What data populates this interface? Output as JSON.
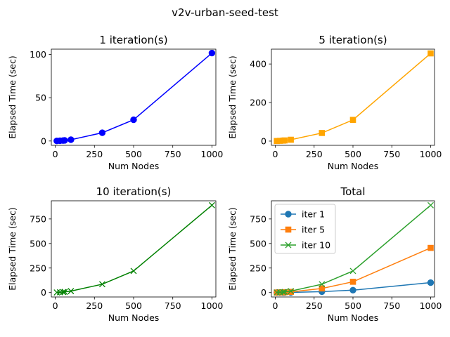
{
  "figure": {
    "title": "v2v-urban-seed-test"
  },
  "chart_data": [
    {
      "type": "line",
      "title": "1 iteration(s)",
      "xlabel": "Num Nodes",
      "ylabel": "Elapsed Time (sec)",
      "xlim": [
        -25,
        1025
      ],
      "ylim": [
        -5,
        106
      ],
      "xticks": [
        0,
        250,
        500,
        750,
        1000
      ],
      "yticks": [
        0,
        50,
        100
      ],
      "grid": false,
      "series": [
        {
          "color": "#0000ff",
          "marker": "circle",
          "x": [
            10,
            30,
            50,
            60,
            100,
            300,
            500,
            1000
          ],
          "y": [
            0.1,
            0.3,
            0.5,
            0.7,
            1.5,
            9.5,
            24.5,
            101.5
          ]
        }
      ]
    },
    {
      "type": "line",
      "title": "5 iteration(s)",
      "xlabel": "Num Nodes",
      "ylabel": "Elapsed Time (sec)",
      "xlim": [
        -25,
        1025
      ],
      "ylim": [
        -22,
        477
      ],
      "xticks": [
        0,
        250,
        500,
        750,
        1000
      ],
      "yticks": [
        0,
        200,
        400
      ],
      "grid": false,
      "series": [
        {
          "color": "#ffa500",
          "marker": "square",
          "x": [
            10,
            30,
            50,
            60,
            100,
            300,
            500,
            1000
          ],
          "y": [
            0.5,
            1.5,
            2.5,
            3.5,
            7,
            42,
            110,
            455
          ]
        }
      ]
    },
    {
      "type": "line",
      "title": "10 iteration(s)",
      "xlabel": "Num Nodes",
      "ylabel": "Elapsed Time (sec)",
      "xlim": [
        -25,
        1025
      ],
      "ylim": [
        -45,
        935
      ],
      "xticks": [
        0,
        250,
        500,
        750,
        1000
      ],
      "yticks": [
        0,
        250,
        500,
        750
      ],
      "grid": false,
      "series": [
        {
          "color": "#008000",
          "marker": "x",
          "x": [
            10,
            30,
            50,
            60,
            100,
            300,
            500,
            1000
          ],
          "y": [
            1,
            3,
            5,
            7,
            15,
            85,
            220,
            890
          ]
        }
      ]
    },
    {
      "type": "line",
      "title": "Total",
      "xlabel": "Num Nodes",
      "ylabel": "Elapsed Time (sec)",
      "xlim": [
        -25,
        1025
      ],
      "ylim": [
        -45,
        935
      ],
      "xticks": [
        0,
        250,
        500,
        750,
        1000
      ],
      "yticks": [
        0,
        250,
        500,
        750
      ],
      "grid": false,
      "legend": "upper-left",
      "series": [
        {
          "name": "iter 1",
          "color": "#1f77b4",
          "marker": "circle",
          "x": [
            10,
            30,
            50,
            60,
            100,
            300,
            500,
            1000
          ],
          "y": [
            0.1,
            0.3,
            0.5,
            0.7,
            1.5,
            9.5,
            24.5,
            101.5
          ]
        },
        {
          "name": "iter 5",
          "color": "#ff7f0e",
          "marker": "square",
          "x": [
            10,
            30,
            50,
            60,
            100,
            300,
            500,
            1000
          ],
          "y": [
            0.5,
            1.5,
            2.5,
            3.5,
            7,
            42,
            110,
            455
          ]
        },
        {
          "name": "iter 10",
          "color": "#2ca02c",
          "marker": "x",
          "x": [
            10,
            30,
            50,
            60,
            100,
            300,
            500,
            1000
          ],
          "y": [
            1,
            3,
            5,
            7,
            15,
            85,
            220,
            890
          ]
        }
      ]
    }
  ]
}
